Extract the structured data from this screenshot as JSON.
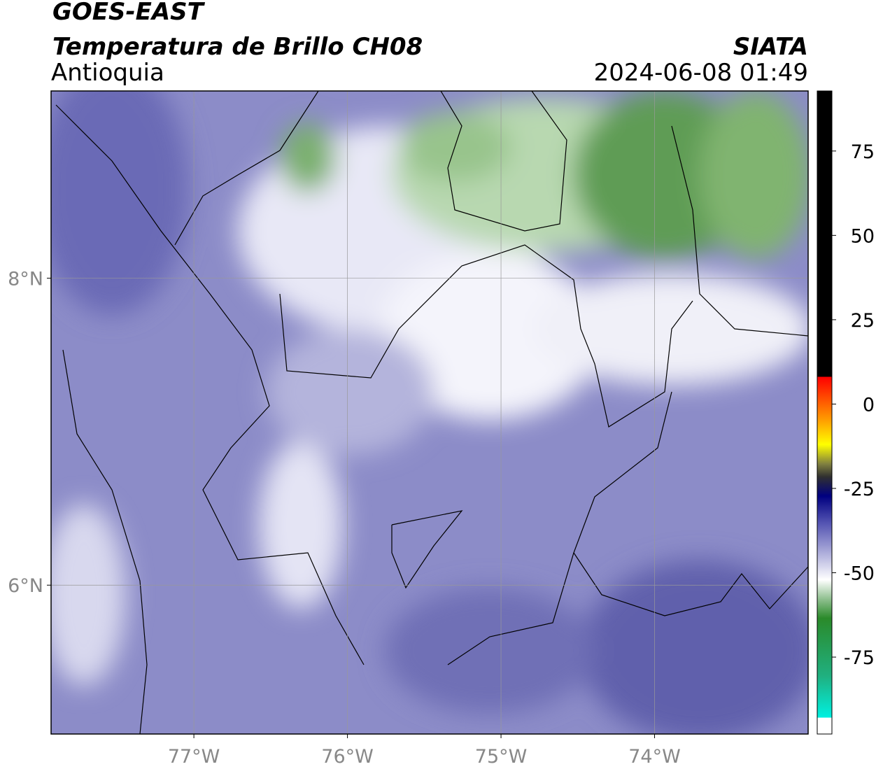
{
  "header": {
    "title": "GOES-EAST",
    "subtitle": "Temperatura de Brillo CH08",
    "region": "Antioquia",
    "source": "SIATA",
    "timestamp": "2024-06-08 01:49"
  },
  "map": {
    "xlim": [
      -77.93,
      -73.0
    ],
    "ylim": [
      5.03,
      9.22
    ],
    "xticks": [
      {
        "value": -77,
        "label": "77°W"
      },
      {
        "value": -76,
        "label": "76°W"
      },
      {
        "value": -75,
        "label": "75°W"
      },
      {
        "value": -74,
        "label": "74°W"
      }
    ],
    "yticks": [
      {
        "value": 6,
        "label": "6°N"
      },
      {
        "value": 8,
        "label": "8°N"
      }
    ],
    "grid": true
  },
  "colorbar": {
    "lim": [
      -97.8,
      92.8
    ],
    "ticks": [
      75,
      50,
      25,
      0,
      -25,
      -50,
      -75
    ]
  }
}
